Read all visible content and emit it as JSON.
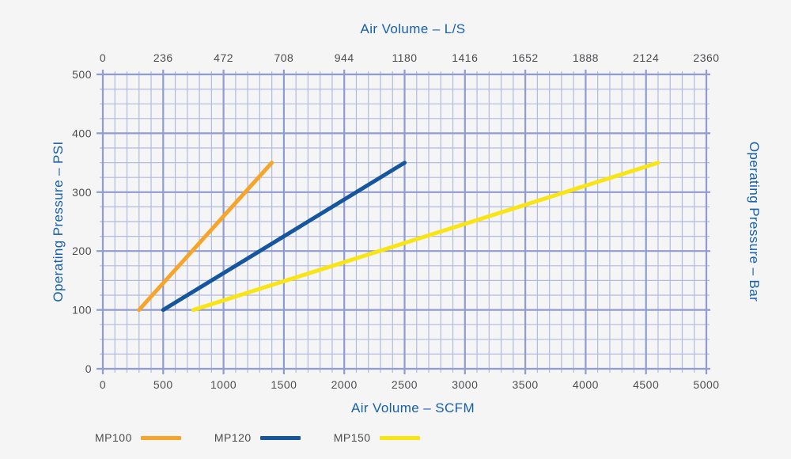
{
  "page": {
    "background_color": "#F5F5F6",
    "title_color": "#155FAC",
    "tick_label_color": "#4D4E50"
  },
  "chart_data": {
    "type": "line",
    "title_top": "Air Volume – L/S",
    "title_bottom": "Air Volume – SCFM",
    "ylabel_left": "Operating Pressure – PSI",
    "ylabel_right": "Operating Pressure – Bar",
    "x_axis": {
      "min": 0,
      "max": 5000,
      "major_step": 500,
      "minor_step": 100,
      "tick_labels_bottom": [
        "0",
        "500",
        "1000",
        "1500",
        "2000",
        "2500",
        "3000",
        "3500",
        "4000",
        "4500",
        "5000"
      ],
      "tick_labels_top": [
        "0",
        "236",
        "472",
        "708",
        "944",
        "1180",
        "1416",
        "1652",
        "1888",
        "2124",
        "2360"
      ]
    },
    "y_axis": {
      "min": 0,
      "max": 500,
      "major_step": 100,
      "minor_step": 25,
      "tick_labels_left": [
        "0",
        "100",
        "200",
        "300",
        "400",
        "500"
      ]
    },
    "grid": {
      "minor_color": "#B2BADF",
      "major_color": "#8E9CD2",
      "grid_on": true
    },
    "series": [
      {
        "name": "MP100",
        "color": "#F6A42A",
        "points": [
          [
            300,
            100
          ],
          [
            1400,
            350
          ]
        ]
      },
      {
        "name": "MP120",
        "color": "#15569E",
        "points": [
          [
            500,
            100
          ],
          [
            2500,
            350
          ]
        ]
      },
      {
        "name": "MP150",
        "color": "#F9E414",
        "points": [
          [
            750,
            100
          ],
          [
            4600,
            350
          ]
        ]
      }
    ],
    "legend_position": "bottom-left"
  }
}
